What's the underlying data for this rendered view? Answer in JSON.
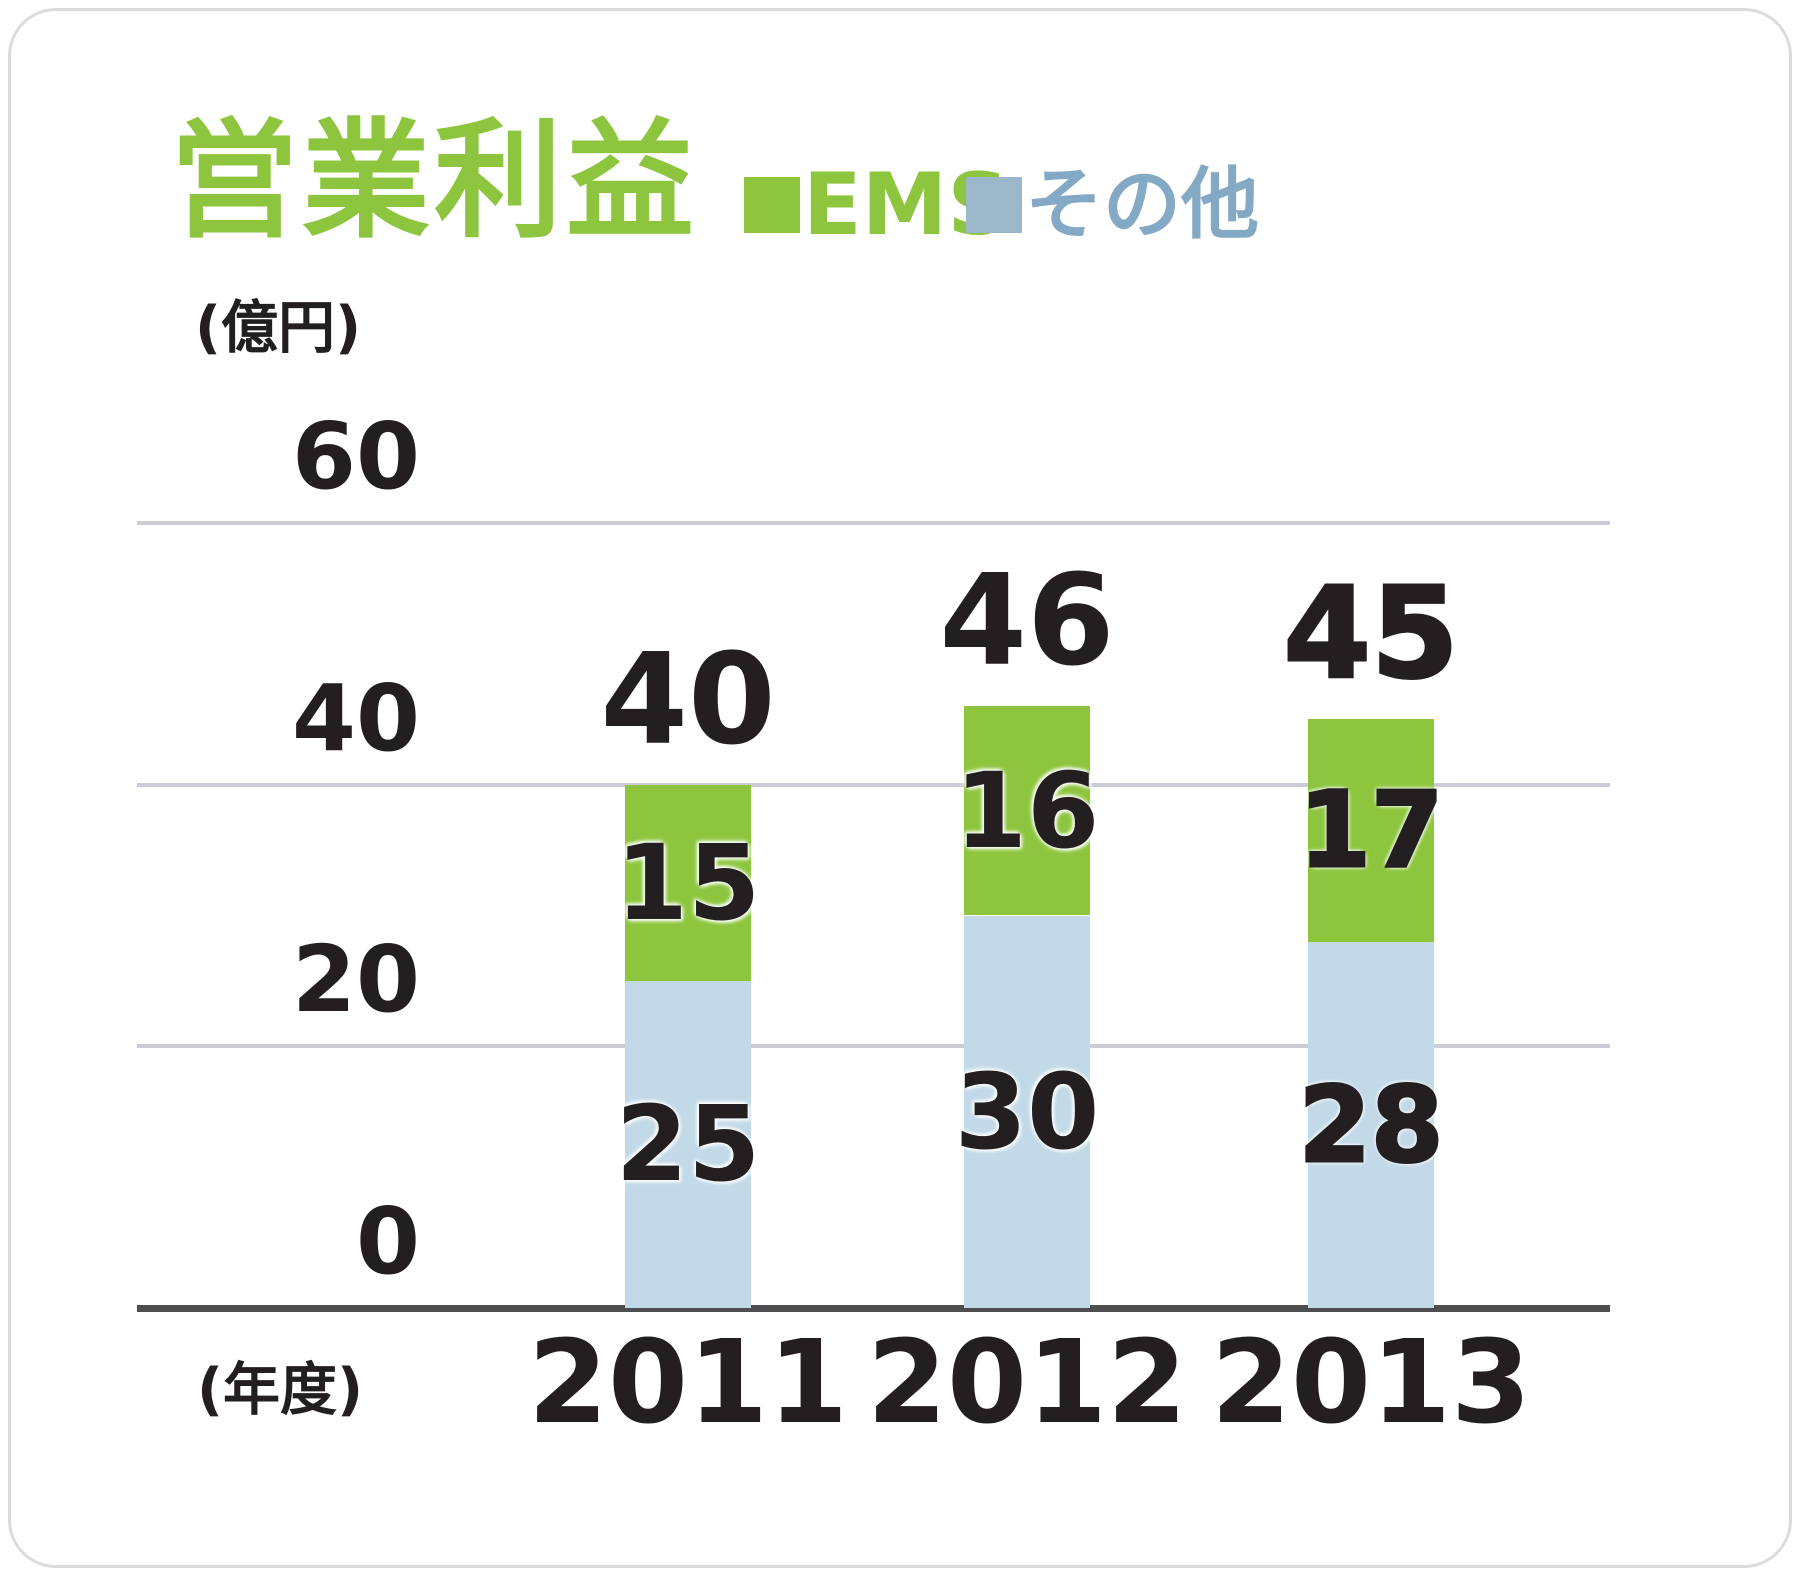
{
  "card": {
    "title": "営業利益"
  },
  "legend": {
    "items": [
      {
        "label": "EMS",
        "swatch_color": "#8dc63e",
        "label_color": "#8dc63e"
      },
      {
        "label": "その他",
        "swatch_color": "#9bb7c9",
        "label_color": "#83a9c4"
      }
    ]
  },
  "axes": {
    "y_unit_label": "(億円)",
    "x_unit_label": "(年度)",
    "y_ticks": [
      "60",
      "40",
      "20",
      "0"
    ]
  },
  "chart_data": {
    "type": "bar",
    "stacked": true,
    "title": "営業利益",
    "categories": [
      "2011",
      "2012",
      "2013"
    ],
    "series": [
      {
        "name": "EMS",
        "color": "#8dc63e",
        "values": [
          15,
          16,
          17
        ]
      },
      {
        "name": "その他",
        "color": "#c2d9e7",
        "values": [
          25,
          30,
          28
        ]
      }
    ],
    "totals": [
      40,
      46,
      45
    ],
    "ylabel": "(億円)",
    "xlabel": "(年度)",
    "ylim": [
      0,
      60
    ],
    "gridline_values": [
      60,
      40,
      20
    ],
    "grid": true,
    "legend_position": "top",
    "emphasized_category": "2013"
  },
  "colors": {
    "accent_green": "#8dc63e",
    "bar_blue": "#c2d9e7",
    "legend_blue_swatch": "#9bb7c9",
    "legend_blue_text": "#83a9c4",
    "gridline": "#cbccd6",
    "axis_line": "#4e4e50",
    "text_dark": "#231f20",
    "card_border": "#dcdcdc",
    "card_background": "#ffffff"
  }
}
